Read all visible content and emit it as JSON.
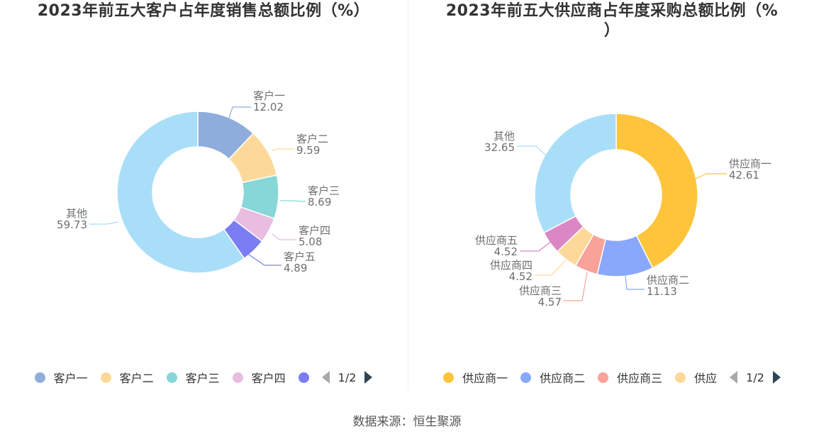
{
  "source_label": "数据来源：恒生聚源",
  "pager": {
    "left": "1/2",
    "right": "1/2"
  },
  "chart_data": [
    {
      "type": "pie",
      "title": "2023年前五大客户占年度销售总额比例（%）",
      "slices": [
        {
          "name": "客户一",
          "value": 12.02,
          "color": "#8eaddc"
        },
        {
          "name": "客户二",
          "value": 9.59,
          "color": "#fdd999"
        },
        {
          "name": "客户三",
          "value": 8.69,
          "color": "#87d6d8"
        },
        {
          "name": "客户四",
          "value": 5.08,
          "color": "#e8bde0"
        },
        {
          "name": "客户五",
          "value": 4.89,
          "color": "#7b7ef2"
        },
        {
          "name": "其他",
          "value": 59.73,
          "color": "#a9def8"
        }
      ],
      "legend_visible": [
        "客户一",
        "客户二",
        "客户三",
        "客户四",
        ""
      ],
      "legend_position": "bottom"
    },
    {
      "type": "pie",
      "title": "2023年前五大供应商占年度采购总额比例（%\n）",
      "slices": [
        {
          "name": "供应商一",
          "value": 42.61,
          "color": "#fec43c"
        },
        {
          "name": "供应商二",
          "value": 11.13,
          "color": "#89a7fb"
        },
        {
          "name": "供应商三",
          "value": 4.57,
          "color": "#f8a29a"
        },
        {
          "name": "供应商四",
          "value": 4.52,
          "color": "#fdd999"
        },
        {
          "name": "供应商五",
          "value": 4.52,
          "color": "#db87c5"
        },
        {
          "name": "其他",
          "value": 32.65,
          "color": "#a9def8"
        }
      ],
      "legend_visible": [
        "供应商一",
        "供应商二",
        "供应商三",
        "供应"
      ],
      "legend_position": "bottom"
    }
  ]
}
